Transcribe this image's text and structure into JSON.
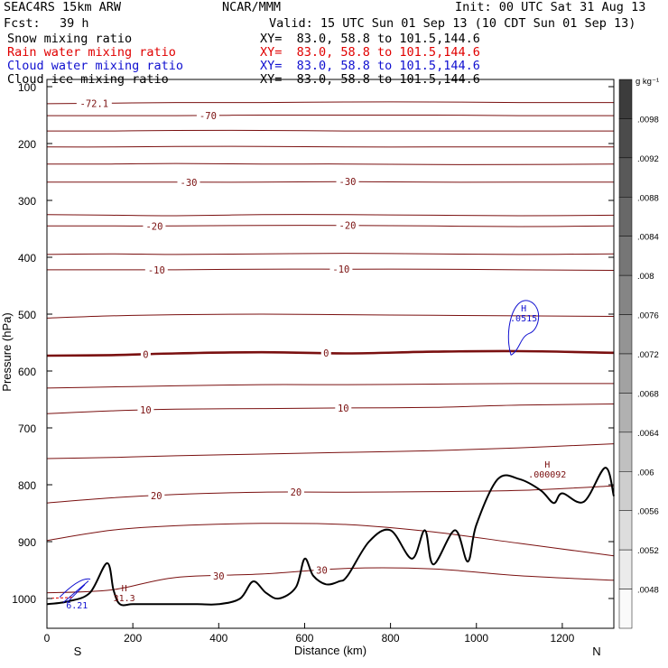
{
  "header": {
    "model": "SEAC4RS 15km ARW",
    "center": "NCAR/MMM",
    "init": "Init: 00 UTC Sat 31 Aug 13",
    "fcst_label": "Fcst:",
    "fcst_value": "39 h",
    "valid": "Valid: 15 UTC Sun 01 Sep 13 (10 CDT Sun 01 Sep 13)",
    "fields": [
      {
        "name": "Snow mixing ratio",
        "xy": "XY=  83.0, 58.8 to 101.5,144.6",
        "color": "#000000"
      },
      {
        "name": "Rain water mixing ratio",
        "xy": "XY=  83.0, 58.8 to 101.5,144.6",
        "color": "#e00000"
      },
      {
        "name": "Cloud water mixing ratio",
        "xy": "XY=  83.0, 58.8 to 101.5,144.6",
        "color": "#1010d0"
      },
      {
        "name": "Cloud ice mixing ratio",
        "xy": "XY=  83.0, 58.8 to 101.5,144.6",
        "color": "#000000"
      }
    ]
  },
  "chart_data": {
    "type": "line",
    "subtype": "vertical cross-section",
    "xlabel": "Distance (km)",
    "ylabel": "Pressure (hPa)",
    "xlim": [
      0,
      1320
    ],
    "ylim": [
      1050,
      100
    ],
    "x_ticks": [
      0,
      200,
      400,
      600,
      800,
      1000,
      1200
    ],
    "y_ticks": [
      100,
      200,
      300,
      400,
      500,
      600,
      700,
      800,
      900,
      1000
    ],
    "x_end_labels": {
      "left": "S",
      "right": "N"
    },
    "colors": {
      "isotherm": "#7a1010",
      "cloud_water": "#1010d0",
      "rain": "#e00000",
      "terrain": "#000000"
    },
    "isotherms": [
      {
        "temp": -72.1,
        "label": "-72.1",
        "p": [
          130,
          129,
          128,
          128,
          127,
          127,
          128,
          128
        ],
        "labels": [
          {
            "x": 110,
            "text": "-72.1"
          }
        ]
      },
      {
        "temp": -70,
        "label": "-70",
        "p": [
          151,
          151,
          151,
          150,
          150,
          150,
          151,
          151
        ],
        "labels": [
          {
            "x": 375,
            "text": "-70"
          }
        ]
      },
      {
        "temp": -60,
        "label": "",
        "p": [
          178,
          178,
          177,
          177,
          178,
          178,
          178,
          178
        ],
        "labels": []
      },
      {
        "temp": -50,
        "label": "",
        "p": [
          206,
          206,
          205,
          205,
          206,
          206,
          206,
          206
        ],
        "labels": []
      },
      {
        "temp": -40,
        "label": "",
        "p": [
          236,
          236,
          235,
          236,
          236,
          237,
          237,
          236
        ],
        "labels": []
      },
      {
        "temp": -30,
        "label": "-30",
        "p": [
          268,
          268,
          268,
          268,
          267,
          268,
          268,
          268
        ],
        "labels": [
          {
            "x": 330,
            "text": "-30"
          },
          {
            "x": 700,
            "text": "-30"
          }
        ]
      },
      {
        "temp": -25,
        "label": "",
        "p": [
          325,
          326,
          327,
          325,
          325,
          326,
          327,
          326
        ],
        "labels": []
      },
      {
        "temp": -20,
        "label": "-20",
        "p": [
          345,
          345,
          345,
          344,
          344,
          345,
          346,
          345
        ],
        "labels": [
          {
            "x": 250,
            "text": "-20"
          },
          {
            "x": 700,
            "text": "-20"
          }
        ]
      },
      {
        "temp": -15,
        "label": "",
        "p": [
          395,
          394,
          395,
          394,
          393,
          394,
          395,
          394
        ],
        "labels": []
      },
      {
        "temp": -10,
        "label": "-10",
        "p": [
          422,
          422,
          422,
          421,
          421,
          421,
          422,
          423
        ],
        "labels": [
          {
            "x": 255,
            "text": "-10"
          },
          {
            "x": 685,
            "text": "-10"
          }
        ]
      },
      {
        "temp": -5,
        "label": "",
        "p": [
          507,
          503,
          501,
          500,
          501,
          502,
          503,
          504
        ],
        "labels": []
      },
      {
        "temp": 0,
        "label": "0",
        "p": [
          573,
          572,
          569,
          567,
          569,
          566,
          565,
          568
        ],
        "labels": [
          {
            "x": 230,
            "text": "0"
          },
          {
            "x": 650,
            "text": "0"
          }
        ]
      },
      {
        "temp": 5,
        "label": "",
        "p": [
          630,
          628,
          626,
          624,
          624,
          623,
          622,
          622
        ],
        "labels": []
      },
      {
        "temp": 10,
        "label": "10",
        "p": [
          675,
          670,
          667,
          666,
          665,
          664,
          660,
          658
        ],
        "labels": [
          {
            "x": 230,
            "text": "10"
          },
          {
            "x": 690,
            "text": "10"
          }
        ]
      },
      {
        "temp": 15,
        "label": "",
        "p": [
          754,
          752,
          749,
          746,
          743,
          740,
          735,
          728
        ],
        "labels": []
      },
      {
        "temp": 20,
        "label": "20",
        "p": [
          832,
          823,
          817,
          813,
          813,
          812,
          810,
          802
        ],
        "labels": [
          {
            "x": 255,
            "text": "20"
          },
          {
            "x": 580,
            "text": "20"
          }
        ]
      },
      {
        "temp": 25,
        "label": "",
        "p": [
          898,
          880,
          872,
          868,
          870,
          883,
          903,
          925
        ],
        "labels": []
      },
      {
        "temp": 30,
        "label": "30",
        "p": [
          990,
          985,
          963,
          957,
          947,
          948,
          960,
          968
        ],
        "labels": [
          {
            "x": 400,
            "text": "30"
          },
          {
            "x": 640,
            "text": "30"
          }
        ]
      }
    ],
    "isotherm_x": [
      0,
      150,
      300,
      500,
      700,
      900,
      1100,
      1320
    ],
    "terrain": {
      "x": [
        0,
        50,
        100,
        140,
        155,
        170,
        200,
        250,
        300,
        350,
        400,
        450,
        480,
        510,
        540,
        580,
        600,
        620,
        650,
        680,
        700,
        750,
        800,
        850,
        880,
        900,
        950,
        980,
        1000,
        1050,
        1100,
        1150,
        1180,
        1200,
        1250,
        1300,
        1320
      ],
      "p": [
        1010,
        1005,
        990,
        938,
        985,
        1010,
        1010,
        1010,
        1010,
        1010,
        1010,
        1000,
        970,
        990,
        1000,
        980,
        930,
        960,
        975,
        970,
        960,
        900,
        880,
        930,
        880,
        940,
        880,
        935,
        870,
        790,
        790,
        810,
        832,
        815,
        830,
        770,
        820
      ]
    },
    "maxima": [
      {
        "x": 1110,
        "p": 495,
        "marker": "H",
        "label": ".0515",
        "color": "#1010d0"
      },
      {
        "x": 1165,
        "p": 770,
        "marker": "H",
        "label": ".000092",
        "color": "#7a1010"
      },
      {
        "x": 180,
        "p": 987,
        "marker": "H",
        "label": "31.3",
        "color": "#7a1010"
      },
      {
        "x": 70,
        "p": 1000,
        "marker": "",
        "label": "6.21",
        "color": "#1010d0"
      }
    ],
    "colorbar": {
      "unit": "g kg⁻¹",
      "labels": [
        ".0098",
        ".0092",
        ".0088",
        ".0084",
        ".008",
        ".0076",
        ".0072",
        ".0068",
        ".0064",
        ".006",
        ".0056",
        ".0052",
        ".0048"
      ]
    }
  }
}
